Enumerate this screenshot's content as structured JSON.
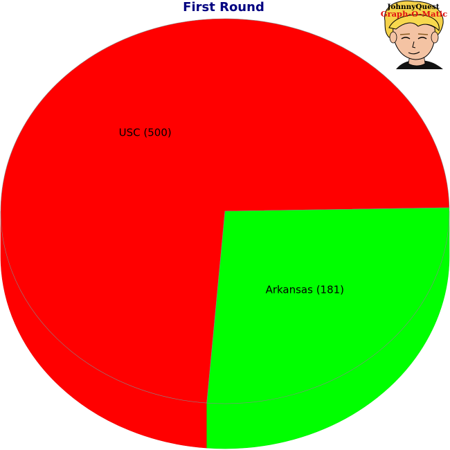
{
  "chart_data": {
    "type": "pie",
    "title": "First Round",
    "categories": [
      "USC",
      "Arkansas"
    ],
    "values": [
      500,
      181
    ],
    "labels": [
      "USC (500)",
      "Arkansas (181)"
    ],
    "colors": [
      "#ff0000",
      "#00ff00"
    ],
    "style": "3d",
    "legend": "none"
  },
  "logo": {
    "line1": "JohnnyQuest",
    "line2": "Graph-O-Matic"
  }
}
